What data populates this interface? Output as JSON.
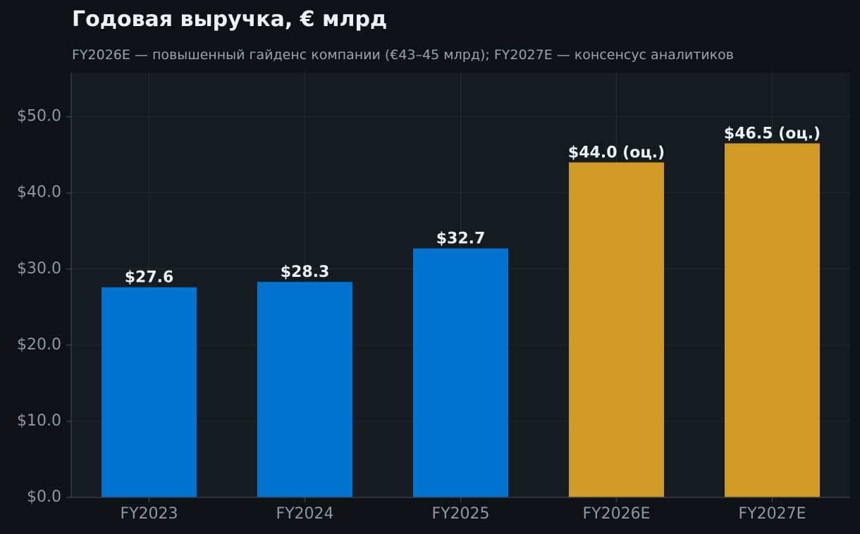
{
  "chart_data": {
    "type": "bar",
    "title": "Годовая выручка, € млрд",
    "subtitle": "FY2026E — повышенный гайденс компании (€43–45 млрд); FY2027E — консенсус аналитиков",
    "xlabel": "",
    "ylabel": "",
    "categories": [
      "FY2023",
      "FY2024",
      "FY2025",
      "FY2026E",
      "FY2027E"
    ],
    "values": [
      27.6,
      28.3,
      32.7,
      44.0,
      46.5
    ],
    "value_labels": [
      "$27.6",
      "$28.3",
      "$32.7",
      "$44.0 (оц.)",
      "$46.5 (оц.)"
    ],
    "estimate": [
      false,
      false,
      false,
      true,
      true
    ],
    "ylim": [
      0,
      55.8
    ],
    "yticks": [
      0,
      10,
      20,
      30,
      40,
      50
    ],
    "ytick_labels": [
      "$0.0",
      "$10.0",
      "$20.0",
      "$30.0",
      "$40.0",
      "$50.0"
    ],
    "grid": true,
    "colors": {
      "actual": "#0072cf",
      "estimate": "#d19a25",
      "background": "#0f1317",
      "plot_background": "#161a21",
      "grid": "#252a33",
      "axis": "#3a4049",
      "tick_text": "#8f98a2",
      "title_text": "#eef2f6",
      "subtitle_text": "#9aa3ad"
    }
  }
}
